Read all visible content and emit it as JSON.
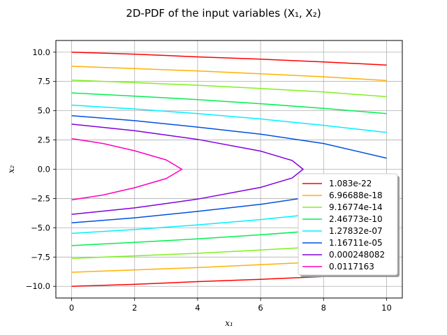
{
  "chart_data": {
    "type": "line",
    "title": "2D-PDF of the input variables (X₁, X₂)",
    "xlabel": "x₁",
    "ylabel": "x₂",
    "xlim": [
      -0.5,
      10.5
    ],
    "ylim": [
      -11,
      11
    ],
    "xticks": [
      "0",
      "2",
      "4",
      "6",
      "8",
      "10"
    ],
    "yticks": [
      "−10.0",
      "−7.5",
      "−5.0",
      "−2.5",
      "0.0",
      "2.5",
      "5.0",
      "7.5",
      "10.0"
    ],
    "grid": true,
    "legend_position": "lower-right",
    "series": [
      {
        "name": "1.083e-22",
        "color": "#ff0000",
        "x": [
          0,
          2,
          4,
          6,
          8,
          10
        ],
        "y": [
          10.0,
          9.83,
          9.6,
          9.4,
          9.17,
          8.9
        ]
      },
      {
        "name": "6.96688e-18",
        "color": "#ffb000",
        "x": [
          0,
          2,
          4,
          6,
          8,
          10
        ],
        "y": [
          8.8,
          8.6,
          8.4,
          8.15,
          7.9,
          7.58
        ]
      },
      {
        "name": "9.16774e-14",
        "color": "#80f020",
        "x": [
          0,
          2,
          4,
          6,
          8,
          10
        ],
        "y": [
          7.62,
          7.4,
          7.18,
          6.9,
          6.6,
          6.2
        ]
      },
      {
        "name": "2.46773e-10",
        "color": "#00f050",
        "x": [
          0,
          2,
          4,
          6,
          8,
          10
        ],
        "y": [
          6.52,
          6.25,
          5.95,
          5.6,
          5.2,
          4.75
        ]
      },
      {
        "name": "1.27832e-07",
        "color": "#00f0ff",
        "x": [
          0,
          2,
          4,
          6,
          8,
          10
        ],
        "y": [
          5.48,
          5.15,
          4.75,
          4.3,
          3.75,
          3.15
        ]
      },
      {
        "name": "1.16711e-05",
        "color": "#0050e0",
        "x": [
          0,
          2,
          4,
          6,
          8,
          10
        ],
        "y": [
          4.58,
          4.15,
          3.6,
          3.0,
          2.2,
          0.95
        ]
      },
      {
        "name": "0.000248082",
        "color": "#8000e0",
        "x": [
          0,
          2,
          4,
          6,
          7,
          7.35
        ],
        "y": [
          3.85,
          3.3,
          2.55,
          1.55,
          0.75,
          0.0
        ]
      },
      {
        "name": "0.0117163",
        "color": "#ff00c0",
        "x": [
          0,
          1,
          2,
          3,
          3.5
        ],
        "y": [
          2.62,
          2.2,
          1.58,
          0.8,
          0.0
        ]
      }
    ]
  }
}
